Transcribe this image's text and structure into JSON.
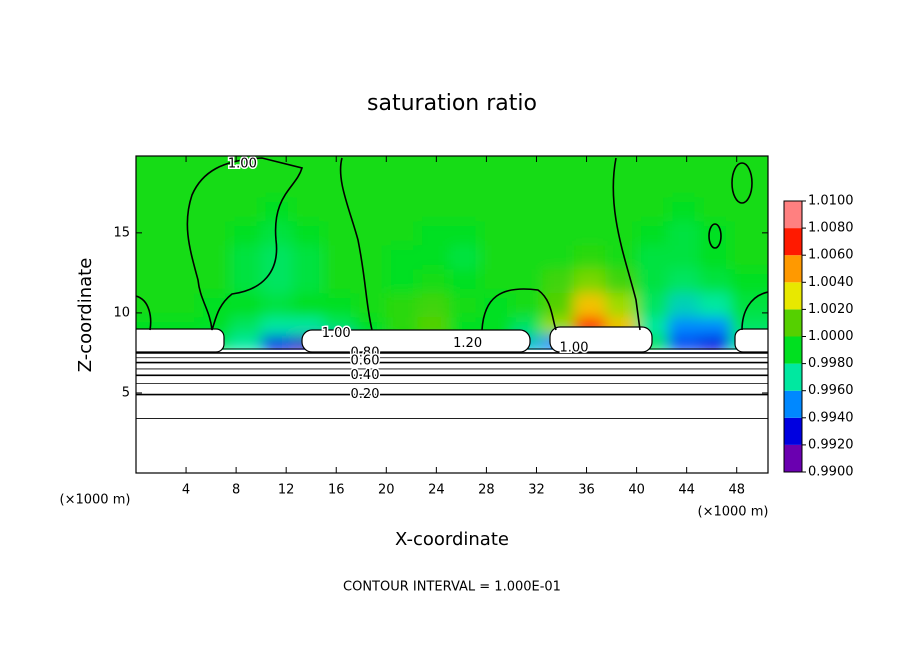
{
  "chart_data": {
    "type": "contour",
    "title": "saturation ratio",
    "x_label": "X-coordinate",
    "y_label": "Z-coordinate",
    "x_unit": "(×1000 m)",
    "footer": "CONTOUR INTERVAL = 1.000E-01",
    "xlim": [
      0,
      50.5
    ],
    "ylim": [
      0,
      19.8
    ],
    "xticks": [
      4,
      8,
      12,
      16,
      20,
      24,
      28,
      32,
      36,
      40,
      44,
      48
    ],
    "yticks": [
      5,
      10,
      15
    ],
    "clim": [
      0.99,
      1.01
    ],
    "colormap": [
      "#6a00b0",
      "#0000e0",
      "#0088ff",
      "#00e8a0",
      "#00e020",
      "#55d000",
      "#e8e800",
      "#ff9900",
      "#ff1a00",
      "#ff8080"
    ],
    "cticks": [
      {
        "value": 0.99,
        "label": "0.9900"
      },
      {
        "value": 0.992,
        "label": "0.9920"
      },
      {
        "value": 0.994,
        "label": "0.9940"
      },
      {
        "value": 0.996,
        "label": "0.9960"
      },
      {
        "value": 0.998,
        "label": "0.9980"
      },
      {
        "value": 1.0,
        "label": "1.0000"
      },
      {
        "value": 1.002,
        "label": "1.0020"
      },
      {
        "value": 1.004,
        "label": "1.0040"
      },
      {
        "value": 1.006,
        "label": "1.0060"
      },
      {
        "value": 1.008,
        "label": "1.0080"
      },
      {
        "value": 1.01,
        "label": "1.0100"
      }
    ],
    "field": {
      "x": [
        1.25,
        3.75,
        6.25,
        8.75,
        11.25,
        13.75,
        16.25,
        18.75,
        21.25,
        23.75,
        26.25,
        28.75,
        31.25,
        33.75,
        36.25,
        38.75,
        41.25,
        43.75,
        46.25,
        48.75
      ],
      "z": [
        8.2,
        9,
        10.5,
        12,
        13.5,
        15,
        16.5,
        18,
        19.5
      ],
      "values": [
        [
          0.999,
          0.999,
          0.998,
          0.997,
          0.993,
          0.992,
          0.994,
          0.998,
          0.999,
          0.999,
          0.999,
          0.999,
          0.996,
          0.995,
          0.998,
          0.999,
          0.998,
          0.994,
          0.993,
          0.997
        ],
        [
          0.999,
          0.999,
          0.999,
          0.998,
          0.997,
          0.997,
          0.998,
          0.999,
          1.0,
          1.001,
          0.999,
          0.999,
          0.998,
          1.002,
          1.007,
          1.004,
          0.997,
          0.995,
          0.995,
          0.998
        ],
        [
          0.9995,
          0.9995,
          0.999,
          0.999,
          0.9985,
          0.999,
          0.999,
          0.9995,
          1.0,
          1.0005,
          0.9995,
          0.999,
          0.9995,
          1.001,
          1.004,
          1.002,
          0.998,
          0.9965,
          0.997,
          0.9985
        ],
        [
          0.9995,
          0.9995,
          0.9995,
          0.9985,
          0.998,
          0.9985,
          0.9995,
          0.9995,
          0.999,
          0.9995,
          0.999,
          0.9995,
          0.9995,
          1.0005,
          1.0015,
          1.0005,
          0.9985,
          0.998,
          0.9985,
          0.999
        ],
        [
          0.9995,
          0.9995,
          0.9995,
          0.9985,
          0.998,
          0.9985,
          0.9995,
          0.9995,
          0.999,
          0.999,
          0.9985,
          0.9995,
          0.9995,
          0.9995,
          1.0,
          0.9995,
          0.9985,
          0.9985,
          0.999,
          0.9995
        ],
        [
          0.9995,
          0.9995,
          0.9995,
          0.999,
          0.9985,
          0.999,
          0.9995,
          0.9995,
          0.9995,
          0.999,
          0.999,
          0.9995,
          0.9995,
          0.9995,
          0.9995,
          0.9995,
          0.999,
          0.9985,
          0.999,
          0.9995
        ],
        [
          0.9995,
          0.9995,
          0.9995,
          0.9995,
          0.999,
          0.9995,
          0.9995,
          0.9995,
          0.9995,
          0.9995,
          0.9995,
          0.9995,
          0.9995,
          0.9995,
          0.9995,
          0.9995,
          0.9995,
          0.999,
          0.9995,
          0.9995
        ],
        [
          0.9995,
          0.9995,
          0.9995,
          0.9995,
          0.9995,
          0.9995,
          0.9995,
          0.9995,
          0.9995,
          0.9995,
          0.9995,
          0.9995,
          0.9995,
          0.9995,
          0.9995,
          0.9995,
          0.9995,
          0.9995,
          0.9995,
          0.9995
        ],
        [
          0.9995,
          0.9995,
          0.9995,
          0.9995,
          0.9995,
          0.9995,
          0.9995,
          0.9995,
          0.9995,
          0.9995,
          0.9995,
          0.9995,
          0.9995,
          0.9995,
          0.9995,
          0.9995,
          0.9995,
          0.9995,
          0.9995,
          0.9995
        ]
      ]
    },
    "contours": [
      {
        "level": 0.1,
        "z": 3.4
      },
      {
        "level": 0.2,
        "z": 4.9
      },
      {
        "level": 0.3,
        "z": 5.6
      },
      {
        "level": 0.4,
        "z": 6.1
      },
      {
        "level": 0.5,
        "z": 6.5
      },
      {
        "level": 0.6,
        "z": 6.9
      },
      {
        "level": 0.7,
        "z": 7.2
      },
      {
        "level": 0.8,
        "z": 7.5
      },
      {
        "level": 0.9,
        "z": 7.75
      }
    ],
    "contour_labels": [
      {
        "text": "1.00",
        "x": 8.5,
        "z": 19.3
      },
      {
        "text": "1.00",
        "x": 16,
        "z": 8.7
      },
      {
        "text": "0.80",
        "x": 18.3,
        "z": 7.5
      },
      {
        "text": "0.60",
        "x": 18.3,
        "z": 7.0
      },
      {
        "text": "0.40",
        "x": 18.3,
        "z": 6.1
      },
      {
        "text": "0.20",
        "x": 18.3,
        "z": 4.9
      },
      {
        "text": "1.20",
        "x": 26.5,
        "z": 8.1
      },
      {
        "text": "1.00",
        "x": 35,
        "z": 7.8
      }
    ]
  }
}
